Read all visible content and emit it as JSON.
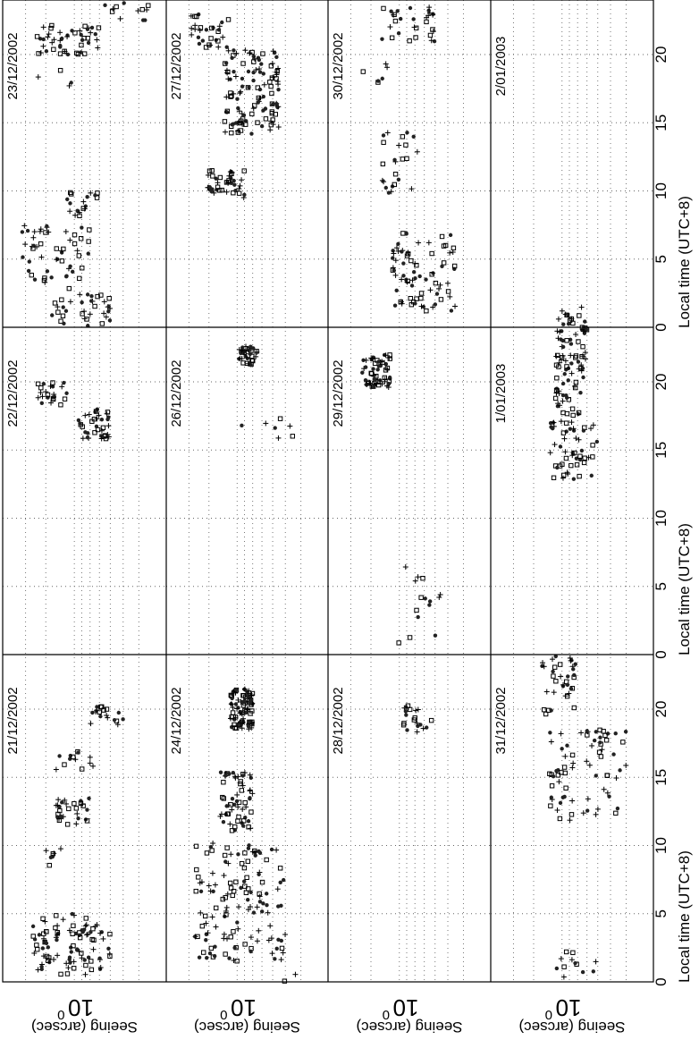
{
  "chart_data": {
    "type": "scatter",
    "orientation": "rotated 90 degrees clockwise",
    "x_label": "Local time (UTC+8)",
    "y_label": "Seeing (arcsec)",
    "y_scale": "log",
    "y_tick_label": "10",
    "y_tick_exponent": "0",
    "x_ticks": [
      "0",
      "5",
      "10",
      "15",
      "20"
    ],
    "xlim": [
      0,
      24
    ],
    "grid": true,
    "markers": [
      "+",
      "□",
      "*"
    ],
    "panels": [
      {
        "date": "21/12/2002",
        "clusters": [
          {
            "t_range": [
              0.5,
              5.0
            ],
            "seeing_range": [
              0.6,
              1.8
            ],
            "density": 160
          },
          {
            "t_range": [
              8.3,
              10.2
            ],
            "seeing_range": [
              1.2,
              1.7
            ],
            "density": 12
          },
          {
            "t_range": [
              11.5,
              13.5
            ],
            "seeing_range": [
              0.8,
              1.3
            ],
            "density": 50
          },
          {
            "t_range": [
              15.5,
              17.2
            ],
            "seeing_range": [
              0.75,
              1.3
            ],
            "density": 22
          },
          {
            "t_range": [
              18.8,
              20.2
            ],
            "seeing_range": [
              0.5,
              0.8
            ],
            "density": 30
          }
        ]
      },
      {
        "date": "22/12/2002",
        "clusters": [
          {
            "t_range": [
              15.8,
              18.0
            ],
            "seeing_range": [
              0.6,
              0.95
            ],
            "density": 60
          },
          {
            "t_range": [
              18.2,
              20.0
            ],
            "seeing_range": [
              1.1,
              1.7
            ],
            "density": 40
          }
        ]
      },
      {
        "date": "23/12/2002",
        "clusters": [
          {
            "t_range": [
              0.1,
              2.5
            ],
            "seeing_range": [
              0.6,
              1.4
            ],
            "density": 60
          },
          {
            "t_range": [
              2.8,
              7.5
            ],
            "seeing_range": [
              0.8,
              2.1
            ],
            "density": 90
          },
          {
            "t_range": [
              8.0,
              10.0
            ],
            "seeing_range": [
              0.7,
              1.2
            ],
            "density": 30
          },
          {
            "t_range": [
              17.6,
              19.0
            ],
            "seeing_range": [
              1.0,
              1.7
            ],
            "density": 6
          },
          {
            "t_range": [
              20.0,
              22.2
            ],
            "seeing_range": [
              0.7,
              1.8
            ],
            "density": 80
          },
          {
            "t_range": [
              22.5,
              24.0
            ],
            "seeing_range": [
              0.35,
              0.7
            ],
            "density": 20
          }
        ]
      },
      {
        "date": "24/12/2002",
        "clusters": [
          {
            "t_range": [
              0.0,
              0.8
            ],
            "seeing_range": [
              0.4,
              0.55
            ],
            "density": 4
          },
          {
            "t_range": [
              1.5,
              10.2
            ],
            "seeing_range": [
              0.5,
              1.9
            ],
            "density": 220
          },
          {
            "t_range": [
              11.0,
              15.5
            ],
            "seeing_range": [
              0.8,
              1.3
            ],
            "density": 100
          },
          {
            "t_range": [
              18.5,
              21.5
            ],
            "seeing_range": [
              0.8,
              1.1
            ],
            "density": 150
          }
        ]
      },
      {
        "date": "26/12/2002",
        "clusters": [
          {
            "t_range": [
              14.8,
              17.3
            ],
            "seeing_range": [
              0.45,
              1.3
            ],
            "density": 12
          },
          {
            "t_range": [
              21.2,
              22.6
            ],
            "seeing_range": [
              0.75,
              1.0
            ],
            "density": 60
          }
        ]
      },
      {
        "date": "27/12/2002",
        "clusters": [
          {
            "t_range": [
              9.5,
              11.5
            ],
            "seeing_range": [
              0.9,
              1.6
            ],
            "density": 70
          },
          {
            "t_range": [
              14.0,
              20.5
            ],
            "seeing_range": [
              0.55,
              1.2
            ],
            "density": 200
          },
          {
            "t_range": [
              20.5,
              23.0
            ],
            "seeing_range": [
              1.1,
              2.0
            ],
            "density": 50
          }
        ]
      },
      {
        "date": "28/12/2002",
        "clusters": [
          {
            "t_range": [
              18.3,
              20.3
            ],
            "seeing_range": [
              0.6,
              1.0
            ],
            "density": 35
          }
        ]
      },
      {
        "date": "29/12/2002",
        "clusters": [
          {
            "t_range": [
              0.7,
              7.5
            ],
            "seeing_range": [
              0.55,
              1.1
            ],
            "density": 25
          },
          {
            "t_range": [
              19.6,
              22.0
            ],
            "seeing_range": [
              1.1,
              1.7
            ],
            "density": 100
          }
        ]
      },
      {
        "date": "30/12/2002",
        "clusters": [
          {
            "t_range": [
              1.2,
              7.0
            ],
            "seeing_range": [
              0.45,
              1.1
            ],
            "density": 130
          },
          {
            "t_range": [
              9.8,
              14.5
            ],
            "seeing_range": [
              0.75,
              1.3
            ],
            "density": 40
          },
          {
            "t_range": [
              17.5,
              19.5
            ],
            "seeing_range": [
              1.0,
              1.8
            ],
            "density": 10
          },
          {
            "t_range": [
              20.8,
              23.5
            ],
            "seeing_range": [
              0.6,
              1.3
            ],
            "density": 50
          }
        ]
      },
      {
        "date": "31/12/2002",
        "clusters": [
          {
            "t_range": [
              0.2,
              2.3
            ],
            "seeing_range": [
              0.6,
              1.1
            ],
            "density": 20
          },
          {
            "t_range": [
              11.8,
              18.5
            ],
            "seeing_range": [
              0.4,
              1.2
            ],
            "density": 120
          },
          {
            "t_range": [
              19.5,
              24.0
            ],
            "seeing_range": [
              0.8,
              1.4
            ],
            "density": 60
          }
        ]
      },
      {
        "date": "1/01/2003",
        "clusters": [
          {
            "t_range": [
              12.8,
              17.2
            ],
            "seeing_range": [
              0.6,
              1.2
            ],
            "density": 90
          },
          {
            "t_range": [
              17.5,
              24.0
            ],
            "seeing_range": [
              0.7,
              1.1
            ],
            "density": 130
          }
        ]
      },
      {
        "date": "2/01/2003",
        "clusters": [
          {
            "t_range": [
              0.0,
              1.5
            ],
            "seeing_range": [
              0.7,
              1.1
            ],
            "density": 25
          }
        ]
      }
    ]
  }
}
